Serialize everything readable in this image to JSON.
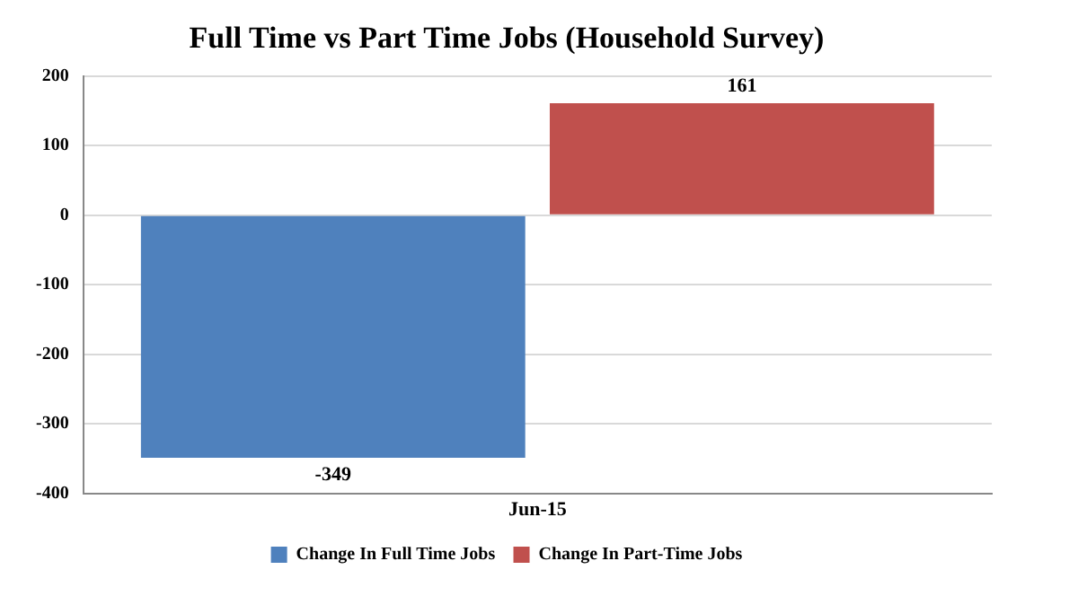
{
  "chart_data": {
    "type": "bar",
    "title": "Full Time vs Part Time Jobs (Household Survey)",
    "categories": [
      "Jun-15"
    ],
    "series": [
      {
        "name": "Change In Full Time Jobs",
        "color": "#4f81bd",
        "values": [
          -349
        ]
      },
      {
        "name": "Change In Part-Time Jobs",
        "color": "#c0504d",
        "values": [
          161
        ]
      }
    ],
    "ylim": [
      -400,
      200
    ],
    "yticks": [
      -400,
      -300,
      -200,
      -100,
      0,
      100,
      200
    ],
    "grid": "y",
    "legend": "bottom",
    "data_labels": true
  }
}
